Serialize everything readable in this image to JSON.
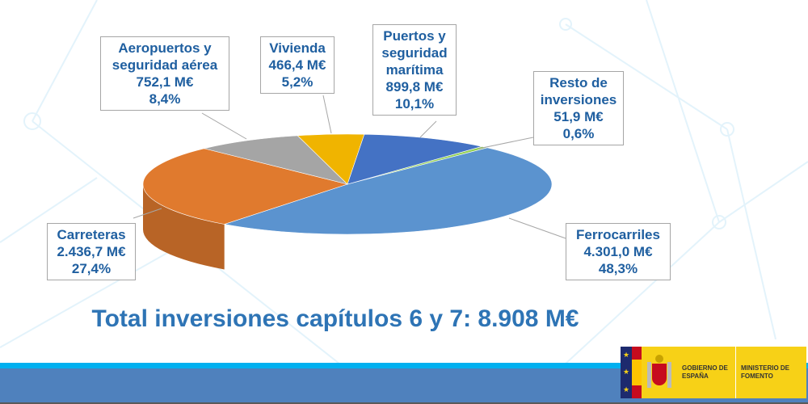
{
  "chart_data": {
    "type": "pie",
    "style": "3d",
    "title": "Total inversiones capítulos 6 y 7: 8.908 M€",
    "unit": "M€",
    "slices": [
      {
        "name": "Resto de inversiones",
        "value": 51.9,
        "percent": 0.6,
        "value_label": "51,9 M€",
        "percent_label": "0,6%",
        "color": "#92d050"
      },
      {
        "name": "Ferrocarriles",
        "value": 4301.0,
        "percent": 48.3,
        "value_label": "4.301,0 M€",
        "percent_label": "48,3%",
        "color": "#5b93cf"
      },
      {
        "name": "Carreteras",
        "value": 2436.7,
        "percent": 27.4,
        "value_label": "2.436,7 M€",
        "percent_label": "27,4%",
        "color": "#e07a2e"
      },
      {
        "name": "Aeropuertos y seguridad aérea",
        "value": 752.1,
        "percent": 8.4,
        "value_label": "752,1 M€",
        "percent_label": "8,4%",
        "color": "#a5a5a5"
      },
      {
        "name": "Vivienda",
        "value": 466.4,
        "percent": 5.2,
        "value_label": "466,4 M€",
        "percent_label": "5,2%",
        "color": "#f0b400"
      },
      {
        "name": "Puertos y seguridad marítima",
        "value": 899.8,
        "percent": 10.1,
        "value_label": "899,8 M€",
        "percent_label": "10,1%",
        "color": "#4472c4"
      }
    ]
  },
  "labels": {
    "resto": [
      "Resto de",
      "inversiones"
    ],
    "ferro": [
      "Ferrocarriles"
    ],
    "carre": [
      "Carreteras"
    ],
    "aero": [
      "Aeropuertos y",
      "seguridad aérea"
    ],
    "vivi": [
      "Vivienda"
    ],
    "puertos": [
      "Puertos y",
      "seguridad",
      "marítima"
    ]
  },
  "logo": {
    "gov": "GOBIERNO DE ESPAÑA",
    "ministry": "MINISTERIO DE FOMENTO"
  }
}
